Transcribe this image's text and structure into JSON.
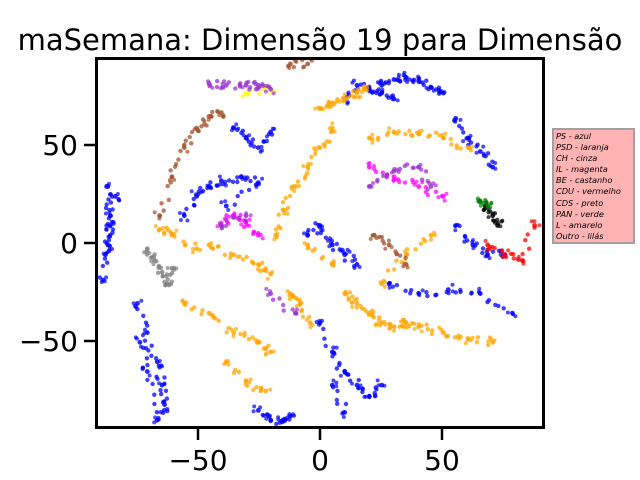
{
  "chart_data": {
    "type": "scatter",
    "title": "maSemana: Dimensão 19 para Dimensão",
    "xlabel": "",
    "ylabel": "",
    "xlim": [
      -90,
      90
    ],
    "ylim": [
      -93,
      95
    ],
    "xticks": [
      -50,
      0,
      50
    ],
    "yticks": [
      50,
      0,
      -50
    ],
    "tick_labels": {
      "x": [
        "−50",
        "0",
        "50"
      ],
      "y": [
        "50",
        "0",
        "−50"
      ]
    },
    "grid": false,
    "legend_placement": "outside-right",
    "legend_entries": [
      "PS - azul",
      "PSD - laranja",
      "CH - cinza",
      "IL - magenta",
      "BE - castanho",
      "CDU - vermelho",
      "CDS - preto",
      "PAN - verde",
      "L - amarelo",
      "Outro - lilás"
    ],
    "series_colors": {
      "PS": "#0000ff",
      "PSD": "#ffa500",
      "CH": "#808080",
      "IL": "#ff00ff",
      "BE": "#a0522d",
      "CDU": "#ff0000",
      "CDS": "#000000",
      "PAN": "#008000",
      "L": "#ffff00",
      "Outro": "#9932cc"
    },
    "clusters": [
      {
        "party": "PS",
        "x": [
          -88,
          -86,
          -85,
          -86,
          -87,
          -85,
          -83
        ],
        "y": [
          -18,
          0,
          15,
          30,
          -5,
          10,
          25
        ]
      },
      {
        "party": "PS",
        "x": [
          -74,
          -70,
          -66,
          -64,
          -63,
          -66,
          -70,
          -73
        ],
        "y": [
          -30,
          -45,
          -60,
          -72,
          -82,
          -90,
          -65,
          -50
        ]
      },
      {
        "party": "PS",
        "x": [
          -55,
          -50,
          -45,
          -40,
          -32,
          -25,
          -38
        ],
        "y": [
          15,
          25,
          30,
          33,
          35,
          32,
          20
        ]
      },
      {
        "party": "PS",
        "x": [
          -35,
          -30,
          -25,
          -20
        ],
        "y": [
          60,
          55,
          50,
          58
        ]
      },
      {
        "party": "PS",
        "x": [
          -5,
          0,
          5,
          10,
          15
        ],
        "y": [
          5,
          10,
          0,
          -5,
          -10
        ]
      },
      {
        "party": "PS",
        "x": [
          10,
          15,
          20,
          25,
          30
        ],
        "y": [
          75,
          82,
          80,
          78,
          75
        ]
      },
      {
        "party": "PS",
        "x": [
          25,
          30,
          35,
          40,
          45,
          50
        ],
        "y": [
          82,
          85,
          86,
          84,
          81,
          78
        ]
      },
      {
        "party": "PS",
        "x": [
          55,
          60,
          65,
          70
        ],
        "y": [
          65,
          55,
          48,
          40
        ]
      },
      {
        "party": "PS",
        "x": [
          55,
          62,
          68,
          75
        ],
        "y": [
          10,
          0,
          -5,
          -5
        ]
      },
      {
        "party": "PS",
        "x": [
          28,
          40,
          52,
          65,
          78
        ],
        "y": [
          -20,
          -25,
          -23,
          -25,
          -35
        ]
      },
      {
        "party": "PS",
        "x": [
          0,
          5,
          10,
          15,
          20,
          25
        ],
        "y": [
          -40,
          -55,
          -65,
          -72,
          -78,
          -72
        ]
      },
      {
        "party": "PS",
        "x": [
          -25,
          -20,
          -15,
          -12
        ],
        "y": [
          -85,
          -90,
          -90,
          -88
        ]
      },
      {
        "party": "PS",
        "x": [
          5,
          10
        ],
        "y": [
          -72,
          -86
        ]
      },
      {
        "party": "PSD",
        "x": [
          -65,
          -60,
          -50
        ],
        "y": [
          8,
          5,
          -2
        ]
      },
      {
        "party": "PSD",
        "x": [
          -45,
          -35,
          -25,
          -20
        ],
        "y": [
          0,
          -5,
          -10,
          -15
        ]
      },
      {
        "party": "PSD",
        "x": [
          -18,
          -15,
          -10,
          -5,
          0,
          5
        ],
        "y": [
          5,
          18,
          30,
          40,
          50,
          60
        ]
      },
      {
        "party": "PSD",
        "x": [
          0,
          5,
          10,
          15,
          18
        ],
        "y": [
          70,
          73,
          75,
          78,
          80
        ]
      },
      {
        "party": "PSD",
        "x": [
          20,
          30,
          40,
          50,
          60
        ],
        "y": [
          55,
          58,
          57,
          55,
          50
        ]
      },
      {
        "party": "PSD",
        "x": [
          10,
          15,
          20,
          25,
          30,
          35,
          40,
          50,
          60,
          70
        ],
        "y": [
          -25,
          -30,
          -35,
          -40,
          -42,
          -40,
          -42,
          -45,
          -48,
          -50
        ]
      },
      {
        "party": "PSD",
        "x": [
          -12,
          -8,
          -4
        ],
        "y": [
          -25,
          -30,
          -40
        ]
      },
      {
        "party": "PSD",
        "x": [
          -55,
          -45,
          -35,
          -25,
          -20
        ],
        "y": [
          -30,
          -35,
          -45,
          -50,
          -55
        ]
      },
      {
        "party": "PSD",
        "x": [
          -38,
          -30,
          -22
        ],
        "y": [
          -60,
          -70,
          -75
        ]
      },
      {
        "party": "PSD",
        "x": [
          25,
          35,
          45
        ],
        "y": [
          -20,
          -5,
          5
        ]
      },
      {
        "party": "PSD",
        "x": [
          -5,
          5
        ],
        "y": [
          0,
          -10
        ]
      },
      {
        "party": "CH",
        "x": [
          -70,
          -67,
          -64,
          -62,
          -60
        ],
        "y": [
          -2,
          -8,
          -14,
          -20,
          -12
        ]
      },
      {
        "party": "IL",
        "x": [
          -40,
          -35,
          -30,
          -25
        ],
        "y": [
          10,
          15,
          12,
          5
        ]
      },
      {
        "party": "IL",
        "x": [
          20,
          30,
          40,
          50
        ],
        "y": [
          40,
          35,
          30,
          25
        ]
      },
      {
        "party": "BE",
        "x": [
          -65,
          -60,
          -55,
          -50,
          -45,
          -40
        ],
        "y": [
          15,
          35,
          50,
          60,
          66,
          68
        ]
      },
      {
        "party": "BE",
        "x": [
          -12,
          -5
        ],
        "y": [
          93,
          93
        ]
      },
      {
        "party": "BE",
        "x": [
          22,
          28,
          35
        ],
        "y": [
          5,
          0,
          -10
        ]
      },
      {
        "party": "CDU",
        "x": [
          68,
          75,
          82,
          87
        ],
        "y": [
          0,
          -5,
          -8,
          10
        ]
      },
      {
        "party": "CDS",
        "x": [
          67,
          70,
          72
        ],
        "y": [
          20,
          15,
          10
        ]
      },
      {
        "party": "PAN",
        "x": [
          65,
          68
        ],
        "y": [
          22,
          20
        ]
      },
      {
        "party": "L",
        "x": [
          -30,
          -20
        ],
        "y": [
          78,
          80
        ]
      },
      {
        "party": "Outro",
        "x": [
          -45,
          -38,
          -30,
          -25,
          -20
        ],
        "y": [
          83,
          82,
          82,
          82,
          80
        ]
      },
      {
        "party": "Outro",
        "x": [
          20,
          30,
          40,
          45
        ],
        "y": [
          30,
          38,
          40,
          30
        ]
      },
      {
        "party": "Outro",
        "x": [
          -40,
          -30
        ],
        "y": [
          10,
          15
        ]
      },
      {
        "party": "Outro",
        "x": [
          -20,
          -10
        ],
        "y": [
          -25,
          -35
        ]
      }
    ]
  }
}
